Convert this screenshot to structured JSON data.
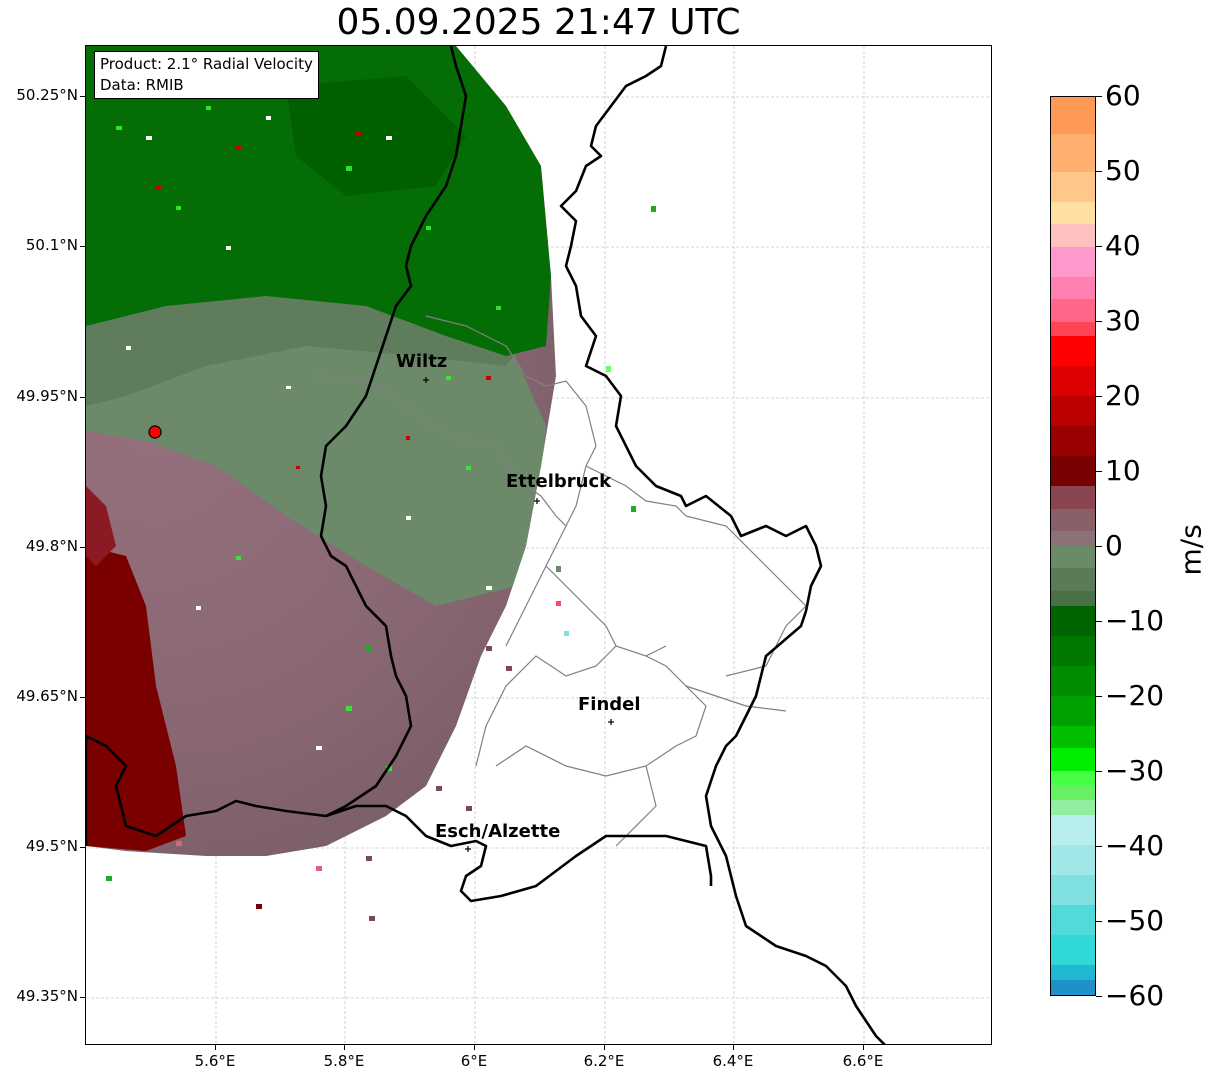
{
  "title": "05.09.2025 21:47 UTC",
  "info_box": {
    "product": "Product: 2.1° Radial Velocity",
    "data_source": "Data: RMIB"
  },
  "axes": {
    "x_ticks": [
      "5.6°E",
      "5.8°E",
      "6°E",
      "6.2°E",
      "6.4°E",
      "6.6°E"
    ],
    "y_ticks": [
      "50.25°N",
      "50.1°N",
      "49.95°N",
      "49.8°N",
      "49.65°N",
      "49.5°N",
      "49.35°N"
    ],
    "x_range_lon": [
      5.4,
      6.8
    ],
    "y_range_lat": [
      49.3,
      50.3
    ],
    "grid": true
  },
  "cities": [
    {
      "name": "Wiltz",
      "lon": 5.93,
      "lat": 49.97
    },
    {
      "name": "Ettelbruck",
      "lon": 6.1,
      "lat": 49.85
    },
    {
      "name": "Findel",
      "lon": 6.21,
      "lat": 49.63
    },
    {
      "name": "Esch/Alzette",
      "lon": 5.99,
      "lat": 49.5
    }
  ],
  "radar_site": {
    "lon": 5.505,
    "lat": 49.915,
    "color": "#ff0000"
  },
  "colorbar": {
    "unit": "m/s",
    "min": -60,
    "max": 60,
    "ticks": [
      "60",
      "50",
      "40",
      "30",
      "20",
      "10",
      "0",
      "−10",
      "−20",
      "−30",
      "−40",
      "−50",
      "−60"
    ]
  },
  "colors": {
    "inbound_green": "#006400",
    "outbound_red": "#7a0000",
    "near_zero_mauve": "#8a6a74",
    "near_zero_green": "#6a8a68",
    "border": "#000000",
    "canton_lines": "#808080"
  }
}
